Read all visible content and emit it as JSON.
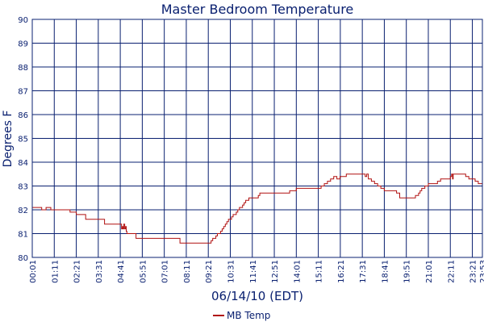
{
  "chart_data": {
    "type": "line",
    "title": "Master Bedroom Temperature",
    "xlabel": "06/14/10 (EDT)",
    "ylabel": "Degrees F",
    "ylim": [
      80,
      90
    ],
    "yticks": [
      80,
      81,
      82,
      83,
      84,
      85,
      86,
      87,
      88,
      89,
      90
    ],
    "xlim": [
      "00:01",
      "23:53"
    ],
    "xtick_labels": [
      "00:01",
      "01:11",
      "02:21",
      "03:31",
      "04:41",
      "05:51",
      "07:01",
      "08:11",
      "09:21",
      "10:31",
      "11:41",
      "12:51",
      "14:01",
      "15:11",
      "16:21",
      "17:31",
      "18:41",
      "19:51",
      "21:01",
      "22:11",
      "23:21",
      "23:53"
    ],
    "grid": true,
    "legend_position": "bottom-center",
    "colors": {
      "background": "#ffffff",
      "grid": "#0a2070",
      "line": "#b01010",
      "text": "#0a2070"
    },
    "series": [
      {
        "name": "MB Temp",
        "x": [
          "00:01",
          "00:30",
          "00:31",
          "00:45",
          "01:00",
          "01:11",
          "02:00",
          "02:01",
          "02:21",
          "02:50",
          "02:51",
          "03:31",
          "03:50",
          "03:51",
          "04:41",
          "04:45",
          "04:48",
          "04:50",
          "04:52",
          "04:55",
          "04:58",
          "05:00",
          "05:02",
          "05:10",
          "05:20",
          "05:30",
          "05:31",
          "05:51",
          "06:30",
          "07:01",
          "07:30",
          "07:50",
          "07:51",
          "08:11",
          "08:30",
          "09:00",
          "09:21",
          "09:25",
          "09:30",
          "09:35",
          "09:40",
          "09:45",
          "09:50",
          "09:55",
          "10:00",
          "10:05",
          "10:10",
          "10:15",
          "10:20",
          "10:25",
          "10:31",
          "10:35",
          "10:40",
          "10:45",
          "10:50",
          "10:55",
          "11:00",
          "11:05",
          "11:10",
          "11:15",
          "11:20",
          "11:30",
          "11:41",
          "11:50",
          "12:00",
          "12:05",
          "12:15",
          "12:30",
          "12:51",
          "13:30",
          "13:40",
          "14:01",
          "14:30",
          "15:00",
          "15:11",
          "15:20",
          "15:30",
          "15:40",
          "15:50",
          "16:00",
          "16:10",
          "16:20",
          "16:21",
          "16:40",
          "17:00",
          "17:31",
          "17:40",
          "17:45",
          "17:50",
          "18:00",
          "18:10",
          "18:20",
          "18:30",
          "18:41",
          "19:00",
          "19:20",
          "19:30",
          "19:51",
          "20:00",
          "20:10",
          "20:20",
          "20:30",
          "20:35",
          "20:40",
          "20:50",
          "21:01",
          "21:20",
          "21:30",
          "21:40",
          "21:50",
          "22:00",
          "22:11",
          "22:15",
          "22:18",
          "22:20",
          "22:30",
          "22:40",
          "22:50",
          "23:00",
          "23:10",
          "23:21",
          "23:30",
          "23:40",
          "23:53"
        ],
        "values": [
          82.1,
          82.1,
          82.0,
          82.1,
          82.0,
          82.0,
          82.0,
          81.9,
          81.8,
          81.8,
          81.6,
          81.6,
          81.6,
          81.4,
          81.4,
          81.2,
          81.3,
          81.2,
          81.4,
          81.2,
          81.3,
          81.1,
          81.0,
          81.0,
          81.0,
          81.0,
          80.8,
          80.8,
          80.8,
          80.8,
          80.8,
          80.8,
          80.6,
          80.6,
          80.6,
          80.6,
          80.6,
          80.6,
          80.7,
          80.8,
          80.8,
          80.9,
          81.0,
          81.0,
          81.1,
          81.2,
          81.3,
          81.4,
          81.5,
          81.6,
          81.6,
          81.7,
          81.8,
          81.8,
          81.9,
          82.0,
          82.1,
          82.1,
          82.2,
          82.3,
          82.4,
          82.5,
          82.5,
          82.5,
          82.6,
          82.7,
          82.7,
          82.7,
          82.7,
          82.7,
          82.8,
          82.9,
          82.9,
          82.9,
          82.9,
          83.0,
          83.1,
          83.2,
          83.3,
          83.4,
          83.3,
          83.4,
          83.4,
          83.5,
          83.5,
          83.5,
          83.4,
          83.5,
          83.3,
          83.2,
          83.1,
          83.0,
          82.9,
          82.8,
          82.8,
          82.7,
          82.5,
          82.5,
          82.5,
          82.5,
          82.6,
          82.7,
          82.8,
          82.9,
          83.0,
          83.1,
          83.1,
          83.2,
          83.3,
          83.3,
          83.3,
          83.4,
          83.5,
          83.3,
          83.5,
          83.5,
          83.5,
          83.5,
          83.4,
          83.3,
          83.3,
          83.2,
          83.1,
          83.1
        ]
      }
    ]
  }
}
